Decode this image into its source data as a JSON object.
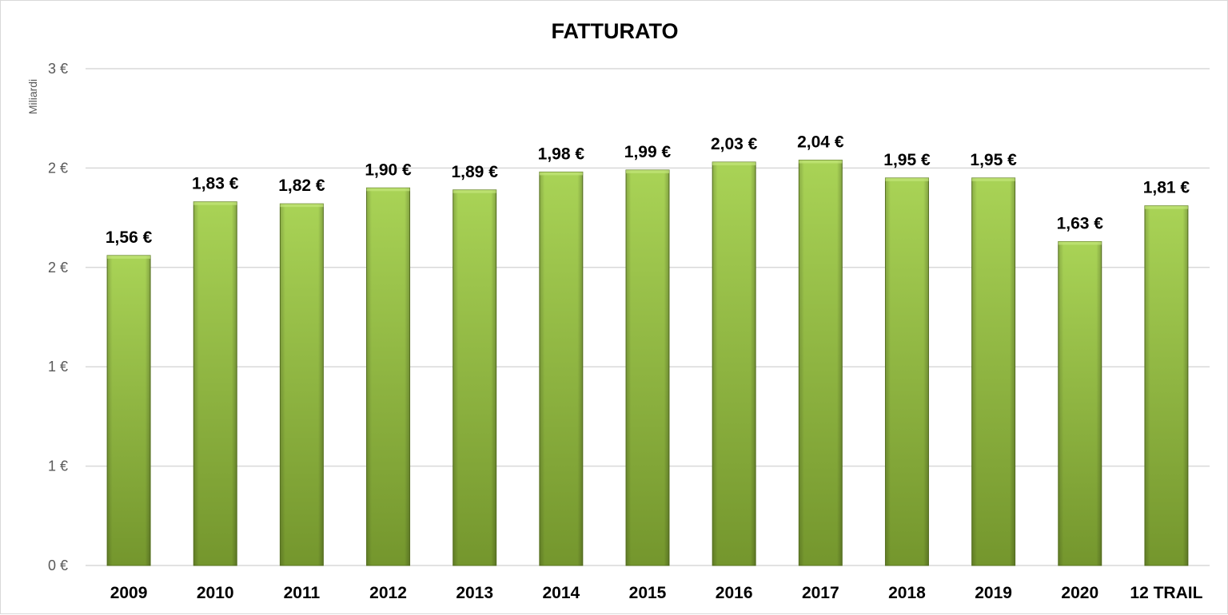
{
  "chart_data": {
    "type": "bar",
    "title": "FATTURATO",
    "ylabel": "Miliardi",
    "xlabel": "",
    "categories": [
      "2009",
      "2010",
      "2011",
      "2012",
      "2013",
      "2014",
      "2015",
      "2016",
      "2017",
      "2018",
      "2019",
      "2020",
      "12 TRAIL"
    ],
    "values": [
      1.56,
      1.83,
      1.82,
      1.9,
      1.89,
      1.98,
      1.99,
      2.03,
      2.04,
      1.95,
      1.95,
      1.63,
      1.81
    ],
    "data_labels": [
      "1,56 €",
      "1,83 €",
      "1,82 €",
      "1,90 €",
      "1,89 €",
      "1,98 €",
      "1,99 €",
      "2,03 €",
      "2,04 €",
      "1,95 €",
      "1,95 €",
      "1,63 €",
      "1,81 €"
    ],
    "yticks": [
      0,
      0.5,
      1,
      1.5,
      2,
      2.5
    ],
    "ytick_labels": [
      "0 €",
      "1 €",
      "1 €",
      "2 €",
      "2 €",
      "3 €"
    ],
    "ylim": [
      0,
      2.5
    ],
    "grid": true,
    "legend": "none",
    "colors": {
      "bar_light": "#a9d356",
      "bar_dark": "#74962d",
      "bar_edge": "#5e7a24",
      "gridline": "#d9d9d9",
      "axis_text": "#595959",
      "label_text": "#000000"
    }
  }
}
